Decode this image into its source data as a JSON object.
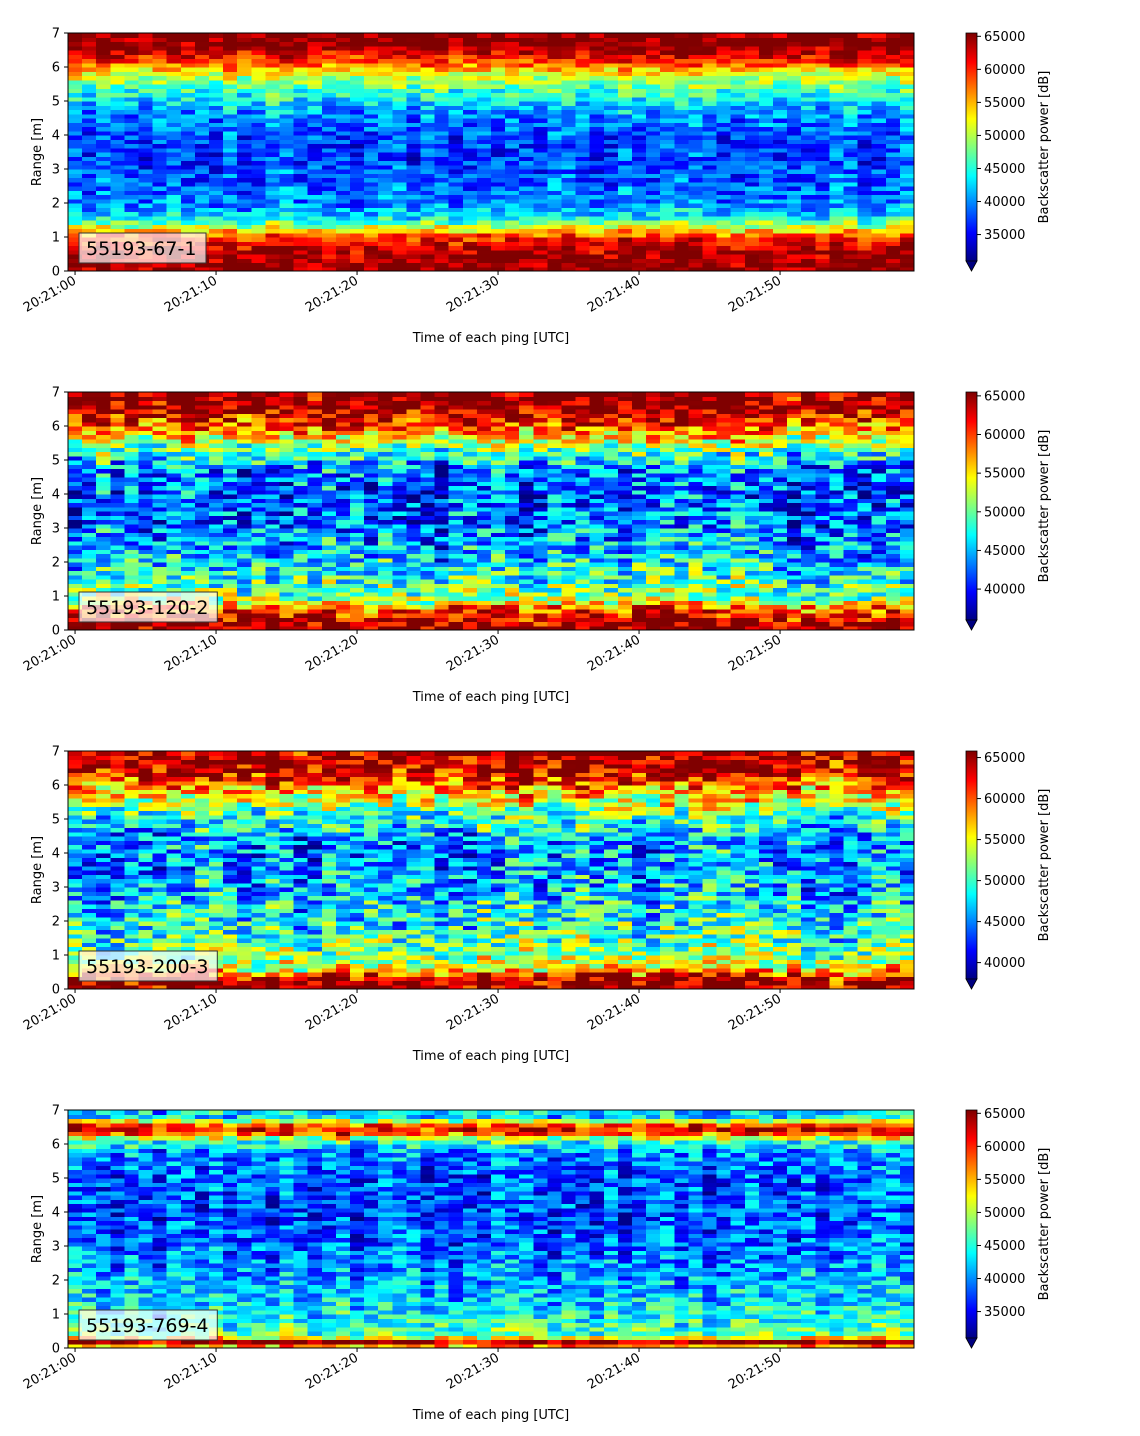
{
  "chart_data": [
    {
      "type": "heatmap",
      "label": "55193-67-1",
      "xlabel": "Time of each ping [UTC]",
      "ylabel": "Range [m]",
      "x_tick_labels": [
        "20:21:00",
        "20:21:10",
        "20:21:20",
        "20:21:30",
        "20:21:40",
        "20:21:50"
      ],
      "x_range_seconds": [
        -0.5,
        59.5
      ],
      "ylim": [
        0,
        7
      ],
      "y_ticks": [
        0,
        1,
        2,
        3,
        4,
        5,
        6,
        7
      ],
      "colorbar_label": "Backscatter power [dB]",
      "colorbar_ticks": [
        35000,
        40000,
        45000,
        50000,
        55000,
        60000,
        65000
      ],
      "clim": [
        31000,
        65500
      ],
      "colormap": "jet",
      "colorbar_extend": "min",
      "profile": {
        "range_m": [
          0.25,
          0.7,
          1.0,
          1.2,
          1.6,
          2.0,
          2.6,
          3.3,
          4.0,
          4.7,
          5.3,
          5.8,
          6.2,
          6.6,
          7.0
        ],
        "power": [
          65500,
          63500,
          60000,
          54000,
          43000,
          40000,
          38500,
          37500,
          38000,
          41000,
          46000,
          52000,
          60000,
          65500,
          65500
        ]
      }
    },
    {
      "type": "heatmap",
      "label": "55193-120-2",
      "xlabel": "Time of each ping [UTC]",
      "ylabel": "Range [m]",
      "x_tick_labels": [
        "20:21:00",
        "20:21:10",
        "20:21:20",
        "20:21:30",
        "20:21:40",
        "20:21:50"
      ],
      "x_range_seconds": [
        -0.5,
        59.5
      ],
      "ylim": [
        0,
        7
      ],
      "y_ticks": [
        0,
        1,
        2,
        3,
        4,
        5,
        6,
        7
      ],
      "colorbar_label": "Backscatter power [dB]",
      "colorbar_ticks": [
        40000,
        45000,
        50000,
        55000,
        60000,
        65000
      ],
      "clim": [
        36000,
        65500
      ],
      "colormap": "jet",
      "colorbar_extend": "min",
      "profile": {
        "range_m": [
          0.1,
          0.6,
          0.9,
          1.5,
          2.0,
          2.6,
          3.3,
          4.0,
          4.7,
          5.2,
          5.7,
          6.2,
          6.6,
          7.0
        ],
        "power": [
          65500,
          60000,
          52000,
          48000,
          46000,
          44000,
          42500,
          42000,
          43000,
          48000,
          55000,
          61000,
          65500,
          65500
        ]
      }
    },
    {
      "type": "heatmap",
      "label": "55193-200-3",
      "xlabel": "Time of each ping [UTC]",
      "ylabel": "Range [m]",
      "x_tick_labels": [
        "20:21:00",
        "20:21:10",
        "20:21:20",
        "20:21:30",
        "20:21:40",
        "20:21:50"
      ],
      "x_range_seconds": [
        -0.5,
        59.5
      ],
      "ylim": [
        0,
        7
      ],
      "y_ticks": [
        0,
        1,
        2,
        3,
        4,
        5,
        6,
        7
      ],
      "colorbar_label": "Backscatter power [dB]",
      "colorbar_ticks": [
        40000,
        45000,
        50000,
        55000,
        60000,
        65000
      ],
      "clim": [
        38000,
        65800
      ],
      "colormap": "jet",
      "colorbar_extend": "min",
      "profile": {
        "range_m": [
          0.1,
          0.35,
          0.6,
          1.0,
          1.6,
          2.2,
          3.0,
          3.8,
          4.5,
          5.0,
          5.5,
          6.0,
          6.4,
          7.0
        ],
        "power": [
          65500,
          64000,
          55000,
          52000,
          50000,
          48000,
          46500,
          45500,
          46000,
          49000,
          54000,
          59000,
          64000,
          65500
        ]
      }
    },
    {
      "type": "heatmap",
      "label": "55193-769-4",
      "xlabel": "Time of each ping [UTC]",
      "ylabel": "Range [m]",
      "x_tick_labels": [
        "20:21:00",
        "20:21:10",
        "20:21:20",
        "20:21:30",
        "20:21:40",
        "20:21:50"
      ],
      "x_range_seconds": [
        -0.5,
        59.5
      ],
      "ylim": [
        0,
        7
      ],
      "y_ticks": [
        0,
        1,
        2,
        3,
        4,
        5,
        6,
        7
      ],
      "colorbar_label": "Backscatter power [dB]",
      "colorbar_ticks": [
        35000,
        40000,
        45000,
        50000,
        55000,
        60000,
        65000
      ],
      "clim": [
        31000,
        65500
      ],
      "colormap": "jet",
      "colorbar_extend": "min",
      "profile": {
        "range_m": [
          0.05,
          0.2,
          0.35,
          0.7,
          1.2,
          2.0,
          3.0,
          4.0,
          5.0,
          5.8,
          6.1,
          6.3,
          6.5,
          6.8,
          7.0
        ],
        "power": [
          55000,
          65500,
          48000,
          45000,
          43000,
          41000,
          38500,
          37500,
          38000,
          40000,
          46000,
          58000,
          63000,
          43000,
          42000
        ]
      }
    }
  ]
}
